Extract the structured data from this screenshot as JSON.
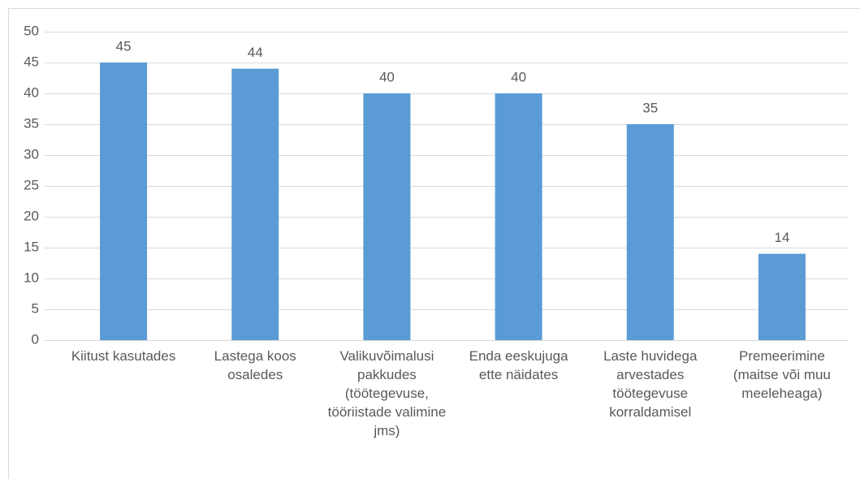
{
  "chart_data": {
    "type": "bar",
    "categories": [
      "Kiitust kasutades",
      "Lastega koos osaledes",
      "Valikuvõimalusi pakkudes (töötegevuse, tööriistade valimine jms)",
      "Enda eeskujuga ette näidates",
      "Laste huvidega arvestades töötegevuse korraldamisel",
      "Premeerimine (maitse või muu meeleheaga)"
    ],
    "values": [
      45,
      44,
      40,
      40,
      35,
      14
    ],
    "color": "#5b9bd5",
    "ylim": [
      0,
      50
    ],
    "yticks": [
      0,
      5,
      10,
      15,
      20,
      25,
      30,
      35,
      40,
      45,
      50
    ],
    "grid": true,
    "data_labels": true
  }
}
